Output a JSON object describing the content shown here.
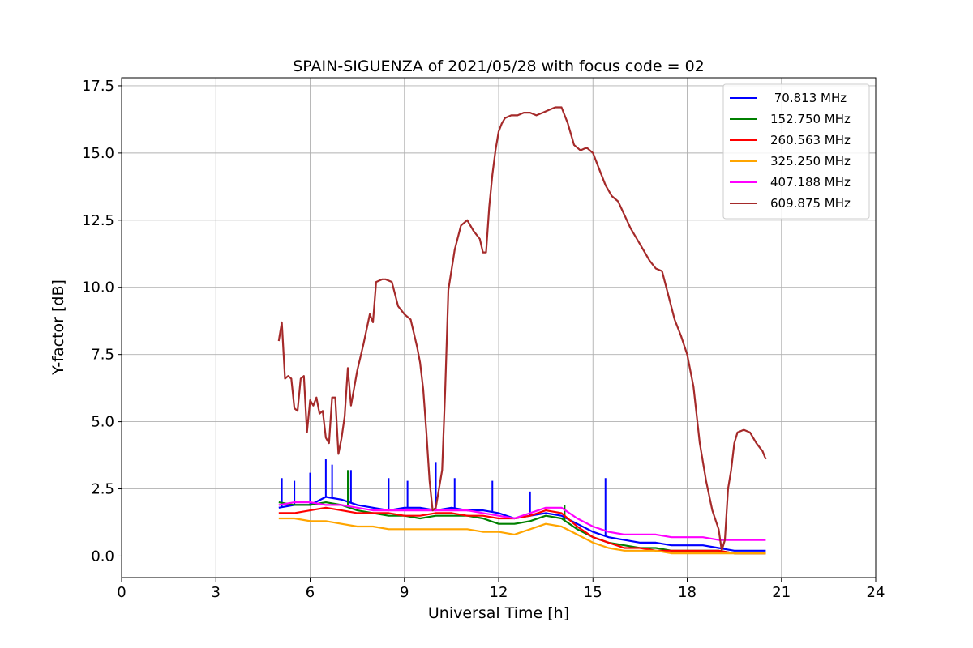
{
  "chart_data": {
    "type": "line",
    "title": "SPAIN-SIGUENZA of 2021/05/28 with focus code = 02",
    "xlabel": "Universal Time [h]",
    "ylabel": "Y-factor [dB]",
    "xlim": [
      0,
      24
    ],
    "ylim": [
      -0.8,
      17.8
    ],
    "xticks": [
      0,
      3,
      6,
      9,
      12,
      15,
      18,
      21,
      24
    ],
    "yticks": [
      0.0,
      2.5,
      5.0,
      7.5,
      10.0,
      12.5,
      15.0,
      17.5
    ],
    "xtick_labels": [
      "0",
      "3",
      "6",
      "9",
      "12",
      "15",
      "18",
      "21",
      "24"
    ],
    "ytick_labels": [
      "0.0",
      "2.5",
      "5.0",
      "7.5",
      "10.0",
      "12.5",
      "15.0",
      "17.5"
    ],
    "grid": true,
    "legend_position": "top-right",
    "series": [
      {
        "name": " 70.813 MHz",
        "color": "#0000ff",
        "x": [
          5.0,
          5.5,
          6.0,
          6.5,
          7.0,
          7.5,
          8.0,
          8.5,
          9.0,
          9.5,
          10.0,
          10.5,
          11.0,
          11.5,
          12.0,
          12.5,
          13.0,
          13.5,
          14.0,
          14.5,
          15.0,
          15.5,
          16.0,
          16.5,
          17.0,
          17.5,
          18.0,
          18.5,
          19.0,
          19.5,
          20.0,
          20.5
        ],
        "y": [
          1.8,
          1.9,
          1.9,
          2.2,
          2.1,
          1.9,
          1.8,
          1.7,
          1.8,
          1.8,
          1.7,
          1.8,
          1.7,
          1.7,
          1.6,
          1.4,
          1.5,
          1.6,
          1.5,
          1.2,
          0.9,
          0.7,
          0.6,
          0.5,
          0.5,
          0.4,
          0.4,
          0.4,
          0.3,
          0.2,
          0.2,
          0.2
        ],
        "spikes": [
          [
            5.1,
            2.9
          ],
          [
            5.5,
            2.8
          ],
          [
            6.0,
            3.1
          ],
          [
            6.5,
            3.6
          ],
          [
            6.7,
            3.4
          ],
          [
            7.3,
            3.2
          ],
          [
            8.5,
            2.9
          ],
          [
            9.1,
            2.8
          ],
          [
            10.0,
            3.5
          ],
          [
            10.6,
            2.9
          ],
          [
            11.8,
            2.8
          ],
          [
            13.0,
            2.4
          ],
          [
            15.4,
            2.9
          ]
        ]
      },
      {
        "name": "152.750 MHz",
        "color": "#008000",
        "x": [
          5.0,
          5.5,
          6.0,
          6.5,
          7.0,
          7.5,
          8.0,
          8.5,
          9.0,
          9.5,
          10.0,
          10.5,
          11.0,
          11.5,
          12.0,
          12.5,
          13.0,
          13.5,
          14.0,
          14.5,
          15.0,
          15.5,
          16.0,
          16.5,
          17.0,
          17.5,
          18.0,
          18.5,
          19.0,
          19.5,
          20.0,
          20.5
        ],
        "y": [
          2.0,
          1.9,
          1.9,
          2.0,
          1.9,
          1.7,
          1.6,
          1.5,
          1.5,
          1.4,
          1.5,
          1.5,
          1.5,
          1.4,
          1.2,
          1.2,
          1.3,
          1.5,
          1.4,
          1.0,
          0.7,
          0.5,
          0.4,
          0.3,
          0.3,
          0.2,
          0.2,
          0.2,
          0.2,
          0.1,
          0.1,
          0.1
        ],
        "spikes": [
          [
            7.2,
            3.2
          ],
          [
            14.1,
            1.9
          ]
        ]
      },
      {
        "name": "260.563 MHz",
        "color": "#ff0000",
        "x": [
          5.0,
          5.5,
          6.0,
          6.5,
          7.0,
          7.5,
          8.0,
          8.5,
          9.0,
          9.5,
          10.0,
          10.5,
          11.0,
          11.5,
          12.0,
          12.5,
          13.0,
          13.5,
          14.0,
          14.5,
          15.0,
          15.5,
          16.0,
          16.5,
          17.0,
          17.5,
          18.0,
          18.5,
          19.0,
          19.5,
          20.0,
          20.5
        ],
        "y": [
          1.6,
          1.6,
          1.7,
          1.8,
          1.7,
          1.6,
          1.6,
          1.6,
          1.5,
          1.5,
          1.6,
          1.6,
          1.5,
          1.5,
          1.4,
          1.4,
          1.5,
          1.7,
          1.6,
          1.1,
          0.7,
          0.5,
          0.3,
          0.3,
          0.2,
          0.2,
          0.2,
          0.2,
          0.2,
          0.1,
          0.1,
          0.1
        ],
        "spikes": []
      },
      {
        "name": "325.250 MHz",
        "color": "#ffa500",
        "x": [
          5.0,
          5.5,
          6.0,
          6.5,
          7.0,
          7.5,
          8.0,
          8.5,
          9.0,
          9.5,
          10.0,
          10.5,
          11.0,
          11.5,
          12.0,
          12.5,
          13.0,
          13.5,
          14.0,
          14.5,
          15.0,
          15.5,
          16.0,
          16.5,
          17.0,
          17.5,
          18.0,
          18.5,
          19.0,
          19.5,
          20.0,
          20.5
        ],
        "y": [
          1.4,
          1.4,
          1.3,
          1.3,
          1.2,
          1.1,
          1.1,
          1.0,
          1.0,
          1.0,
          1.0,
          1.0,
          1.0,
          0.9,
          0.9,
          0.8,
          1.0,
          1.2,
          1.1,
          0.8,
          0.5,
          0.3,
          0.2,
          0.2,
          0.2,
          0.1,
          0.1,
          0.1,
          0.1,
          0.1,
          0.1,
          0.1
        ],
        "spikes": []
      },
      {
        "name": "407.188 MHz",
        "color": "#ff00ff",
        "x": [
          5.0,
          5.5,
          6.0,
          6.5,
          7.0,
          7.5,
          8.0,
          8.5,
          9.0,
          9.5,
          10.0,
          10.5,
          11.0,
          11.5,
          12.0,
          12.5,
          13.0,
          13.5,
          14.0,
          14.5,
          15.0,
          15.5,
          16.0,
          16.5,
          17.0,
          17.5,
          18.0,
          18.5,
          19.0,
          19.5,
          20.0,
          20.5
        ],
        "y": [
          1.9,
          2.0,
          2.0,
          1.9,
          1.9,
          1.8,
          1.7,
          1.7,
          1.7,
          1.7,
          1.7,
          1.7,
          1.7,
          1.6,
          1.5,
          1.4,
          1.6,
          1.8,
          1.8,
          1.4,
          1.1,
          0.9,
          0.8,
          0.8,
          0.8,
          0.7,
          0.7,
          0.7,
          0.6,
          0.6,
          0.6,
          0.6
        ],
        "spikes": []
      },
      {
        "name": "609.875 MHz",
        "color": "#a52a2a",
        "x": [
          5.0,
          5.1,
          5.2,
          5.3,
          5.4,
          5.5,
          5.6,
          5.7,
          5.8,
          5.9,
          6.0,
          6.1,
          6.2,
          6.3,
          6.4,
          6.5,
          6.6,
          6.7,
          6.8,
          6.9,
          7.0,
          7.1,
          7.2,
          7.3,
          7.5,
          7.7,
          7.9,
          8.0,
          8.1,
          8.3,
          8.4,
          8.6,
          8.8,
          9.0,
          9.2,
          9.4,
          9.5,
          9.6,
          9.7,
          9.8,
          9.9,
          10.0,
          10.2,
          10.3,
          10.4,
          10.6,
          10.8,
          11.0,
          11.2,
          11.4,
          11.5,
          11.6,
          11.7,
          11.8,
          11.9,
          12.0,
          12.1,
          12.2,
          12.4,
          12.6,
          12.8,
          13.0,
          13.2,
          13.4,
          13.6,
          13.8,
          14.0,
          14.2,
          14.4,
          14.6,
          14.8,
          15.0,
          15.2,
          15.4,
          15.6,
          15.8,
          16.0,
          16.2,
          16.4,
          16.6,
          16.8,
          17.0,
          17.2,
          17.4,
          17.6,
          17.8,
          18.0,
          18.2,
          18.4,
          18.6,
          18.8,
          19.0,
          19.1,
          19.2,
          19.3,
          19.4,
          19.5,
          19.6,
          19.8,
          20.0,
          20.2,
          20.4,
          20.5
        ],
        "y": [
          8.0,
          8.7,
          6.6,
          6.7,
          6.6,
          5.5,
          5.4,
          6.6,
          6.7,
          4.6,
          5.8,
          5.6,
          5.9,
          5.3,
          5.4,
          4.4,
          4.2,
          5.9,
          5.9,
          3.8,
          4.4,
          5.2,
          7.0,
          5.6,
          6.9,
          7.9,
          9.0,
          8.7,
          10.2,
          10.3,
          10.3,
          10.2,
          9.3,
          9.0,
          8.8,
          7.8,
          7.2,
          6.2,
          4.6,
          2.8,
          1.7,
          1.8,
          3.2,
          6.2,
          9.9,
          11.4,
          12.3,
          12.5,
          12.1,
          11.8,
          11.3,
          11.3,
          13.0,
          14.2,
          15.1,
          15.8,
          16.1,
          16.3,
          16.4,
          16.4,
          16.5,
          16.5,
          16.4,
          16.5,
          16.6,
          16.7,
          16.7,
          16.1,
          15.3,
          15.1,
          15.2,
          15.0,
          14.4,
          13.8,
          13.4,
          13.2,
          12.7,
          12.2,
          11.8,
          11.4,
          11.0,
          10.7,
          10.6,
          9.7,
          8.8,
          8.2,
          7.5,
          6.3,
          4.2,
          2.8,
          1.7,
          1.0,
          0.2,
          0.6,
          2.5,
          3.2,
          4.2,
          4.6,
          4.7,
          4.6,
          4.2,
          3.9,
          3.6
        ]
      }
    ]
  }
}
